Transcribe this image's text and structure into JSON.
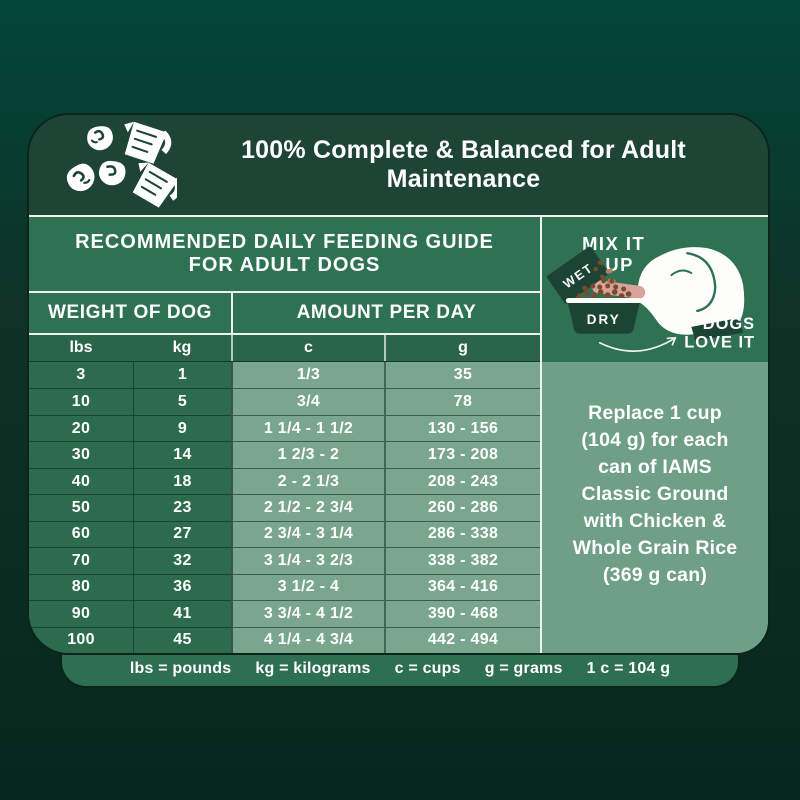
{
  "header": {
    "title": "100% Complete & Balanced for Adult Maintenance",
    "icons": [
      "kibble-icon",
      "measuring-cup-icon"
    ]
  },
  "guide": {
    "title_line1": "RECOMMENDED DAILY FEEDING GUIDE",
    "title_line2": "FOR ADULT DOGS",
    "group_headers": [
      "WEIGHT OF DOG",
      "AMOUNT PER DAY"
    ],
    "columns": [
      "lbs",
      "kg",
      "c",
      "g"
    ],
    "rows": [
      {
        "lbs": "3",
        "kg": "1",
        "c": "1/3",
        "g": "35"
      },
      {
        "lbs": "10",
        "kg": "5",
        "c": "3/4",
        "g": "78"
      },
      {
        "lbs": "20",
        "kg": "9",
        "c": "1 1/4  -  1 1/2",
        "g": "130  -  156"
      },
      {
        "lbs": "30",
        "kg": "14",
        "c": "1 2/3  -  2",
        "g": "173  -  208"
      },
      {
        "lbs": "40",
        "kg": "18",
        "c": "2  -  2 1/3",
        "g": "208  -  243"
      },
      {
        "lbs": "50",
        "kg": "23",
        "c": "2 1/2  -  2 3/4",
        "g": "260  -  286"
      },
      {
        "lbs": "60",
        "kg": "27",
        "c": "2 3/4  -  3 1/4",
        "g": "286  -  338"
      },
      {
        "lbs": "70",
        "kg": "32",
        "c": "3 1/4  -  3 2/3",
        "g": "338  -  382"
      },
      {
        "lbs": "80",
        "kg": "36",
        "c": "3 1/2  -  4",
        "g": "364  -  416"
      },
      {
        "lbs": "90",
        "kg": "41",
        "c": "3 3/4  -  4 1/2",
        "g": "390  -  468"
      },
      {
        "lbs": "100",
        "kg": "45",
        "c": "4 1/4  -  4 3/4",
        "g": "442  -  494"
      }
    ]
  },
  "sidebar": {
    "mix": {
      "line1": "MIX IT",
      "line2": "UP",
      "wet_label": "WET",
      "dry_label": "DRY",
      "dogs_line1": "DOGS",
      "dogs_line2": "LOVE IT"
    },
    "replace_lines": [
      "Replace 1 cup",
      "(104 g) for each",
      "can of IAMS",
      "Classic Ground",
      "with Chicken &",
      "Whole Grain Rice",
      "(369 g can)"
    ]
  },
  "legend": {
    "items": [
      "lbs = pounds",
      "kg = kilograms",
      "c = cups",
      "g = grams",
      "1 c = 104 g"
    ]
  },
  "colors": {
    "background_top": "#02463a",
    "background_bottom": "#04281d",
    "panel_dark_green": "#1d4435",
    "band_green": "#2e7153",
    "cell_dark_green": "#2d6b4d",
    "cell_sage_green": "#79a68c",
    "sidebar_sage_green": "#6fa087",
    "legend_green": "#2e6f51",
    "text_white": "#ffffff",
    "kibble_brown": "#7a4a2c",
    "tongue_pink": "#d9a29a"
  }
}
